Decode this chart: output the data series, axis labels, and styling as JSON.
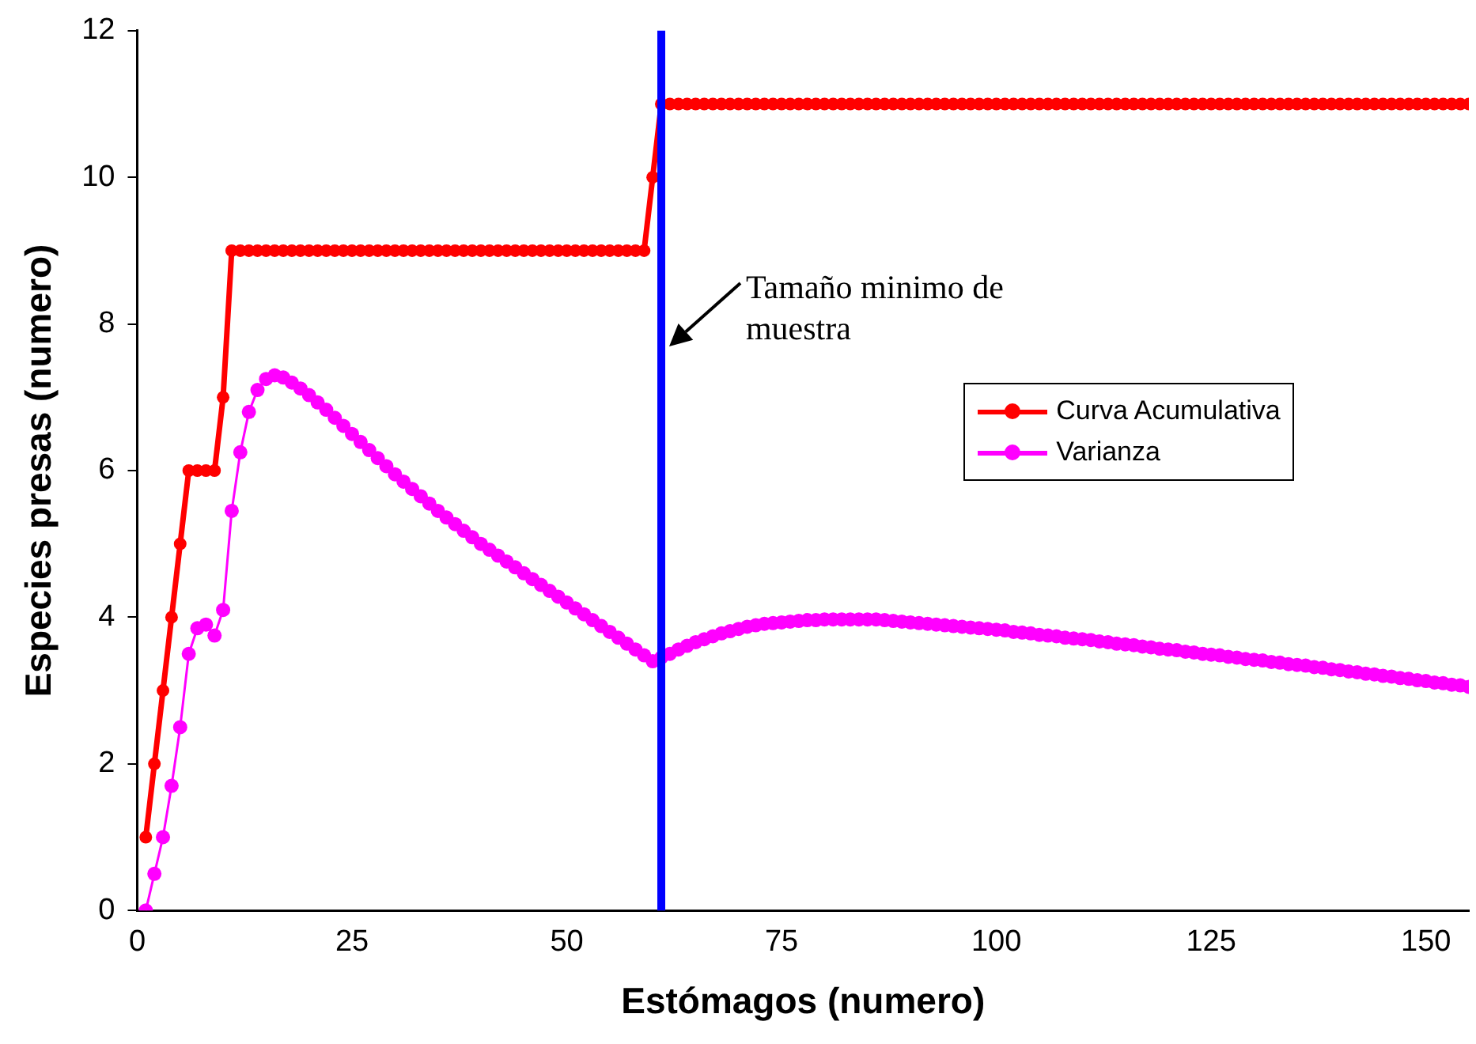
{
  "chart_data": {
    "type": "line",
    "xlabel": "Estómagos (numero)",
    "ylabel": "Especies presas (numero)",
    "x": [
      1,
      2,
      3,
      4,
      5,
      6,
      7,
      8,
      9,
      10,
      11,
      12,
      13,
      14,
      15,
      16,
      17,
      18,
      19,
      20,
      21,
      22,
      23,
      24,
      25,
      26,
      27,
      28,
      29,
      30,
      31,
      32,
      33,
      34,
      35,
      36,
      37,
      38,
      39,
      40,
      41,
      42,
      43,
      44,
      45,
      46,
      47,
      48,
      49,
      50,
      51,
      52,
      53,
      54,
      55,
      56,
      57,
      58,
      59,
      60,
      61,
      62,
      63,
      64,
      65,
      66,
      67,
      68,
      69,
      70,
      71,
      72,
      73,
      74,
      75,
      76,
      77,
      78,
      79,
      80,
      81,
      82,
      83,
      84,
      85,
      86,
      87,
      88,
      89,
      90,
      91,
      92,
      93,
      94,
      95,
      96,
      97,
      98,
      99,
      100,
      101,
      102,
      103,
      104,
      105,
      106,
      107,
      108,
      109,
      110,
      111,
      112,
      113,
      114,
      115,
      116,
      117,
      118,
      119,
      120,
      121,
      122,
      123,
      124,
      125,
      126,
      127,
      128,
      129,
      130,
      131,
      132,
      133,
      134,
      135,
      136,
      137,
      138,
      139,
      140,
      141,
      142,
      143,
      144,
      145,
      146,
      147,
      148,
      149,
      150,
      151,
      152,
      153,
      154,
      155
    ],
    "series": [
      {
        "name": "Curva Acumulativa",
        "color": "#ff0000",
        "values": [
          1,
          2,
          3,
          4,
          5,
          6,
          6,
          6,
          6,
          7,
          9,
          9,
          9,
          9,
          9,
          9,
          9,
          9,
          9,
          9,
          9,
          9,
          9,
          9,
          9,
          9,
          9,
          9,
          9,
          9,
          9,
          9,
          9,
          9,
          9,
          9,
          9,
          9,
          9,
          9,
          9,
          9,
          9,
          9,
          9,
          9,
          9,
          9,
          9,
          9,
          9,
          9,
          9,
          9,
          9,
          9,
          9,
          9,
          9,
          10,
          11,
          11,
          11,
          11,
          11,
          11,
          11,
          11,
          11,
          11,
          11,
          11,
          11,
          11,
          11,
          11,
          11,
          11,
          11,
          11,
          11,
          11,
          11,
          11,
          11,
          11,
          11,
          11,
          11,
          11,
          11,
          11,
          11,
          11,
          11,
          11,
          11,
          11,
          11,
          11,
          11,
          11,
          11,
          11,
          11,
          11,
          11,
          11,
          11,
          11,
          11,
          11,
          11,
          11,
          11,
          11,
          11,
          11,
          11,
          11,
          11,
          11,
          11,
          11,
          11,
          11,
          11,
          11,
          11,
          11,
          11,
          11,
          11,
          11,
          11,
          11,
          11,
          11,
          11,
          11,
          11,
          11,
          11,
          11,
          11,
          11,
          11,
          11,
          11,
          11,
          11,
          11,
          11,
          11,
          11
        ]
      },
      {
        "name": "Varianza",
        "color": "#ff00ff",
        "values": [
          0,
          0.5,
          1,
          1.7,
          2.5,
          3.5,
          3.85,
          3.9,
          3.75,
          4.1,
          5.45,
          6.25,
          6.8,
          7.1,
          7.25,
          7.3,
          7.27,
          7.2,
          7.12,
          7.03,
          6.93,
          6.83,
          6.72,
          6.61,
          6.5,
          6.39,
          6.28,
          6.17,
          6.06,
          5.95,
          5.85,
          5.75,
          5.65,
          5.55,
          5.45,
          5.36,
          5.27,
          5.18,
          5.09,
          5,
          4.92,
          4.84,
          4.76,
          4.68,
          4.6,
          4.52,
          4.44,
          4.36,
          4.28,
          4.2,
          4.12,
          4.04,
          3.96,
          3.88,
          3.8,
          3.72,
          3.64,
          3.56,
          3.48,
          3.4,
          3.45,
          3.5,
          3.56,
          3.61,
          3.66,
          3.7,
          3.74,
          3.78,
          3.81,
          3.84,
          3.87,
          3.89,
          3.91,
          3.92,
          3.93,
          3.94,
          3.95,
          3.96,
          3.96,
          3.97,
          3.97,
          3.97,
          3.97,
          3.97,
          3.97,
          3.97,
          3.96,
          3.95,
          3.94,
          3.93,
          3.92,
          3.91,
          3.9,
          3.89,
          3.88,
          3.87,
          3.86,
          3.85,
          3.84,
          3.83,
          3.82,
          3.8,
          3.79,
          3.78,
          3.76,
          3.75,
          3.74,
          3.72,
          3.71,
          3.7,
          3.69,
          3.67,
          3.66,
          3.64,
          3.63,
          3.62,
          3.6,
          3.59,
          3.57,
          3.56,
          3.55,
          3.53,
          3.52,
          3.5,
          3.49,
          3.48,
          3.46,
          3.45,
          3.43,
          3.42,
          3.41,
          3.39,
          3.38,
          3.36,
          3.35,
          3.34,
          3.32,
          3.31,
          3.29,
          3.28,
          3.26,
          3.25,
          3.23,
          3.22,
          3.2,
          3.19,
          3.17,
          3.16,
          3.14,
          3.13,
          3.11,
          3.1,
          3.08,
          3.07,
          3.05
        ]
      }
    ],
    "xlim": [
      0,
      155
    ],
    "xticks": [
      0,
      25,
      50,
      75,
      100,
      125,
      150
    ],
    "ylim": [
      0,
      12
    ],
    "yticks": [
      0,
      2,
      4,
      6,
      8,
      10,
      12
    ],
    "ref_lines": [
      {
        "axis": "x",
        "value": 61,
        "color": "#0000ff"
      }
    ],
    "annotations": [
      {
        "text": "Tamaño minimo de muestra",
        "x": 62,
        "y": 7.7
      }
    ],
    "grid": false,
    "legend": "right",
    "marker": "circle",
    "line_style": "solid"
  }
}
